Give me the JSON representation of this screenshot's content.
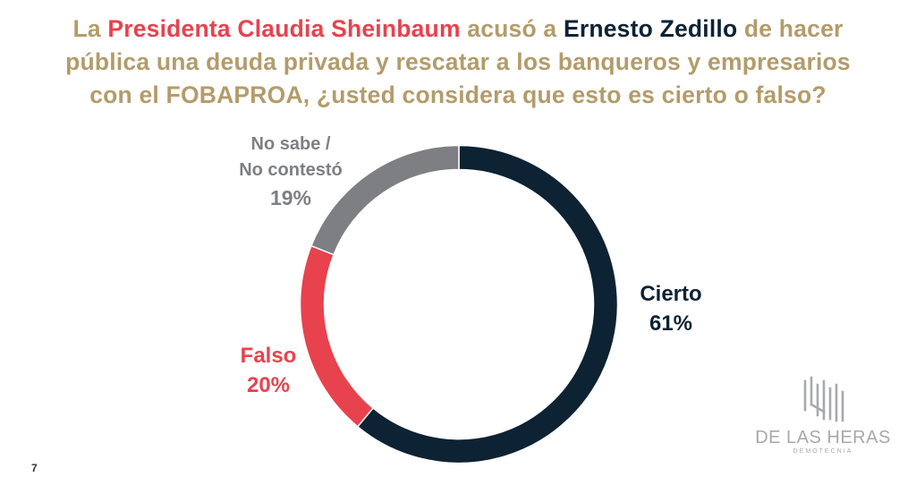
{
  "title": {
    "line1": [
      {
        "text": "La ",
        "color": "gold"
      },
      {
        "text": "Presidenta Claudia Sheinbaum",
        "color": "red"
      },
      {
        "text": " acusó a ",
        "color": "gold"
      },
      {
        "text": "Ernesto Zedillo",
        "color": "navy"
      },
      {
        "text": " de hacer",
        "color": "gold"
      }
    ],
    "line2": "pública una deuda privada y rescatar a los banqueros y empresarios",
    "line3": "con el FOBAPROA, ¿usted considera que esto es cierto o falso?"
  },
  "colors": {
    "gold": "#b39c6b",
    "red": "#e8424e",
    "navy": "#0d2233",
    "gray": "#7d7f83"
  },
  "chart_data": {
    "type": "pie",
    "style": "donut",
    "slices": [
      {
        "label": "Cierto",
        "value": 61,
        "display": "61%",
        "color": "#0d2233"
      },
      {
        "label": "Falso",
        "value": 20,
        "display": "20%",
        "color": "#e8424e"
      },
      {
        "label": "No sabe / No contestó",
        "value": 19,
        "display": "19%",
        "color": "#7d7f83"
      }
    ]
  },
  "labels": {
    "cierto": {
      "name": "Cierto",
      "pct": "61%"
    },
    "falso": {
      "name": "Falso",
      "pct": "20%"
    },
    "nosabe": {
      "name_line1": "No sabe /",
      "name_line2": "No contestó",
      "pct": "19%"
    }
  },
  "page_number": "7",
  "logo": {
    "name": "DE LAS HERAS",
    "subtitle": "DEMOTECNIA"
  }
}
